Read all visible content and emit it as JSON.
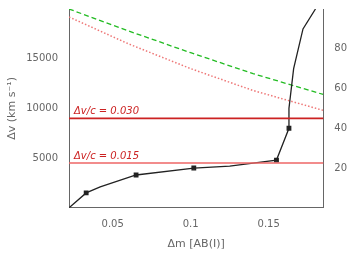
{
  "chart_data": {
    "type": "line",
    "xlabel": "Δm [AB(I)]",
    "ylabel": "Δv (km s⁻¹)",
    "xlim": [
      0.022,
      0.185
    ],
    "ylim": [
      0,
      20000
    ],
    "xticks": [
      0.05,
      0.1,
      0.15
    ],
    "yticks": [
      5000,
      10000,
      15000
    ],
    "y2lim": [
      0,
      100
    ],
    "y2ticks": [
      20,
      40,
      60,
      80
    ],
    "grid": false,
    "series": [
      {
        "color": "#22bb22",
        "line_style": "dashed",
        "x": [
          0.022,
          0.06,
          0.1,
          0.14,
          0.185
        ],
        "values": [
          20000,
          17800,
          15600,
          13500,
          11400
        ]
      },
      {
        "color": "#ee7777",
        "line_style": "dotted",
        "x": [
          0.022,
          0.06,
          0.1,
          0.14,
          0.185
        ],
        "values": [
          19200,
          16500,
          14000,
          11800,
          9800
        ]
      },
      {
        "color": "#222222",
        "line_style": "solid",
        "x": [
          0.022,
          0.033,
          0.042,
          0.065,
          0.102,
          0.125,
          0.14,
          0.155,
          0.163,
          0.163,
          0.166,
          0.172,
          0.18
        ],
        "values": [
          0,
          1500,
          2100,
          3300,
          4000,
          4200,
          4500,
          4800,
          8000,
          10000,
          14000,
          18000,
          20000
        ]
      },
      {
        "type": "scatter",
        "marker": "square",
        "color": "#222222",
        "x": [
          0.033,
          0.065,
          0.102,
          0.155,
          0.163
        ],
        "values": [
          1500,
          3300,
          4000,
          4800,
          8000
        ]
      }
    ],
    "hlines": [
      {
        "y": 9000,
        "color": "#cc2222",
        "label": "Δv/c = 0.030",
        "label_color": "#cc2222"
      },
      {
        "y": 4500,
        "color": "#ee6666",
        "label": "Δv/c = 0.015",
        "label_color": "#cc2222"
      }
    ]
  }
}
